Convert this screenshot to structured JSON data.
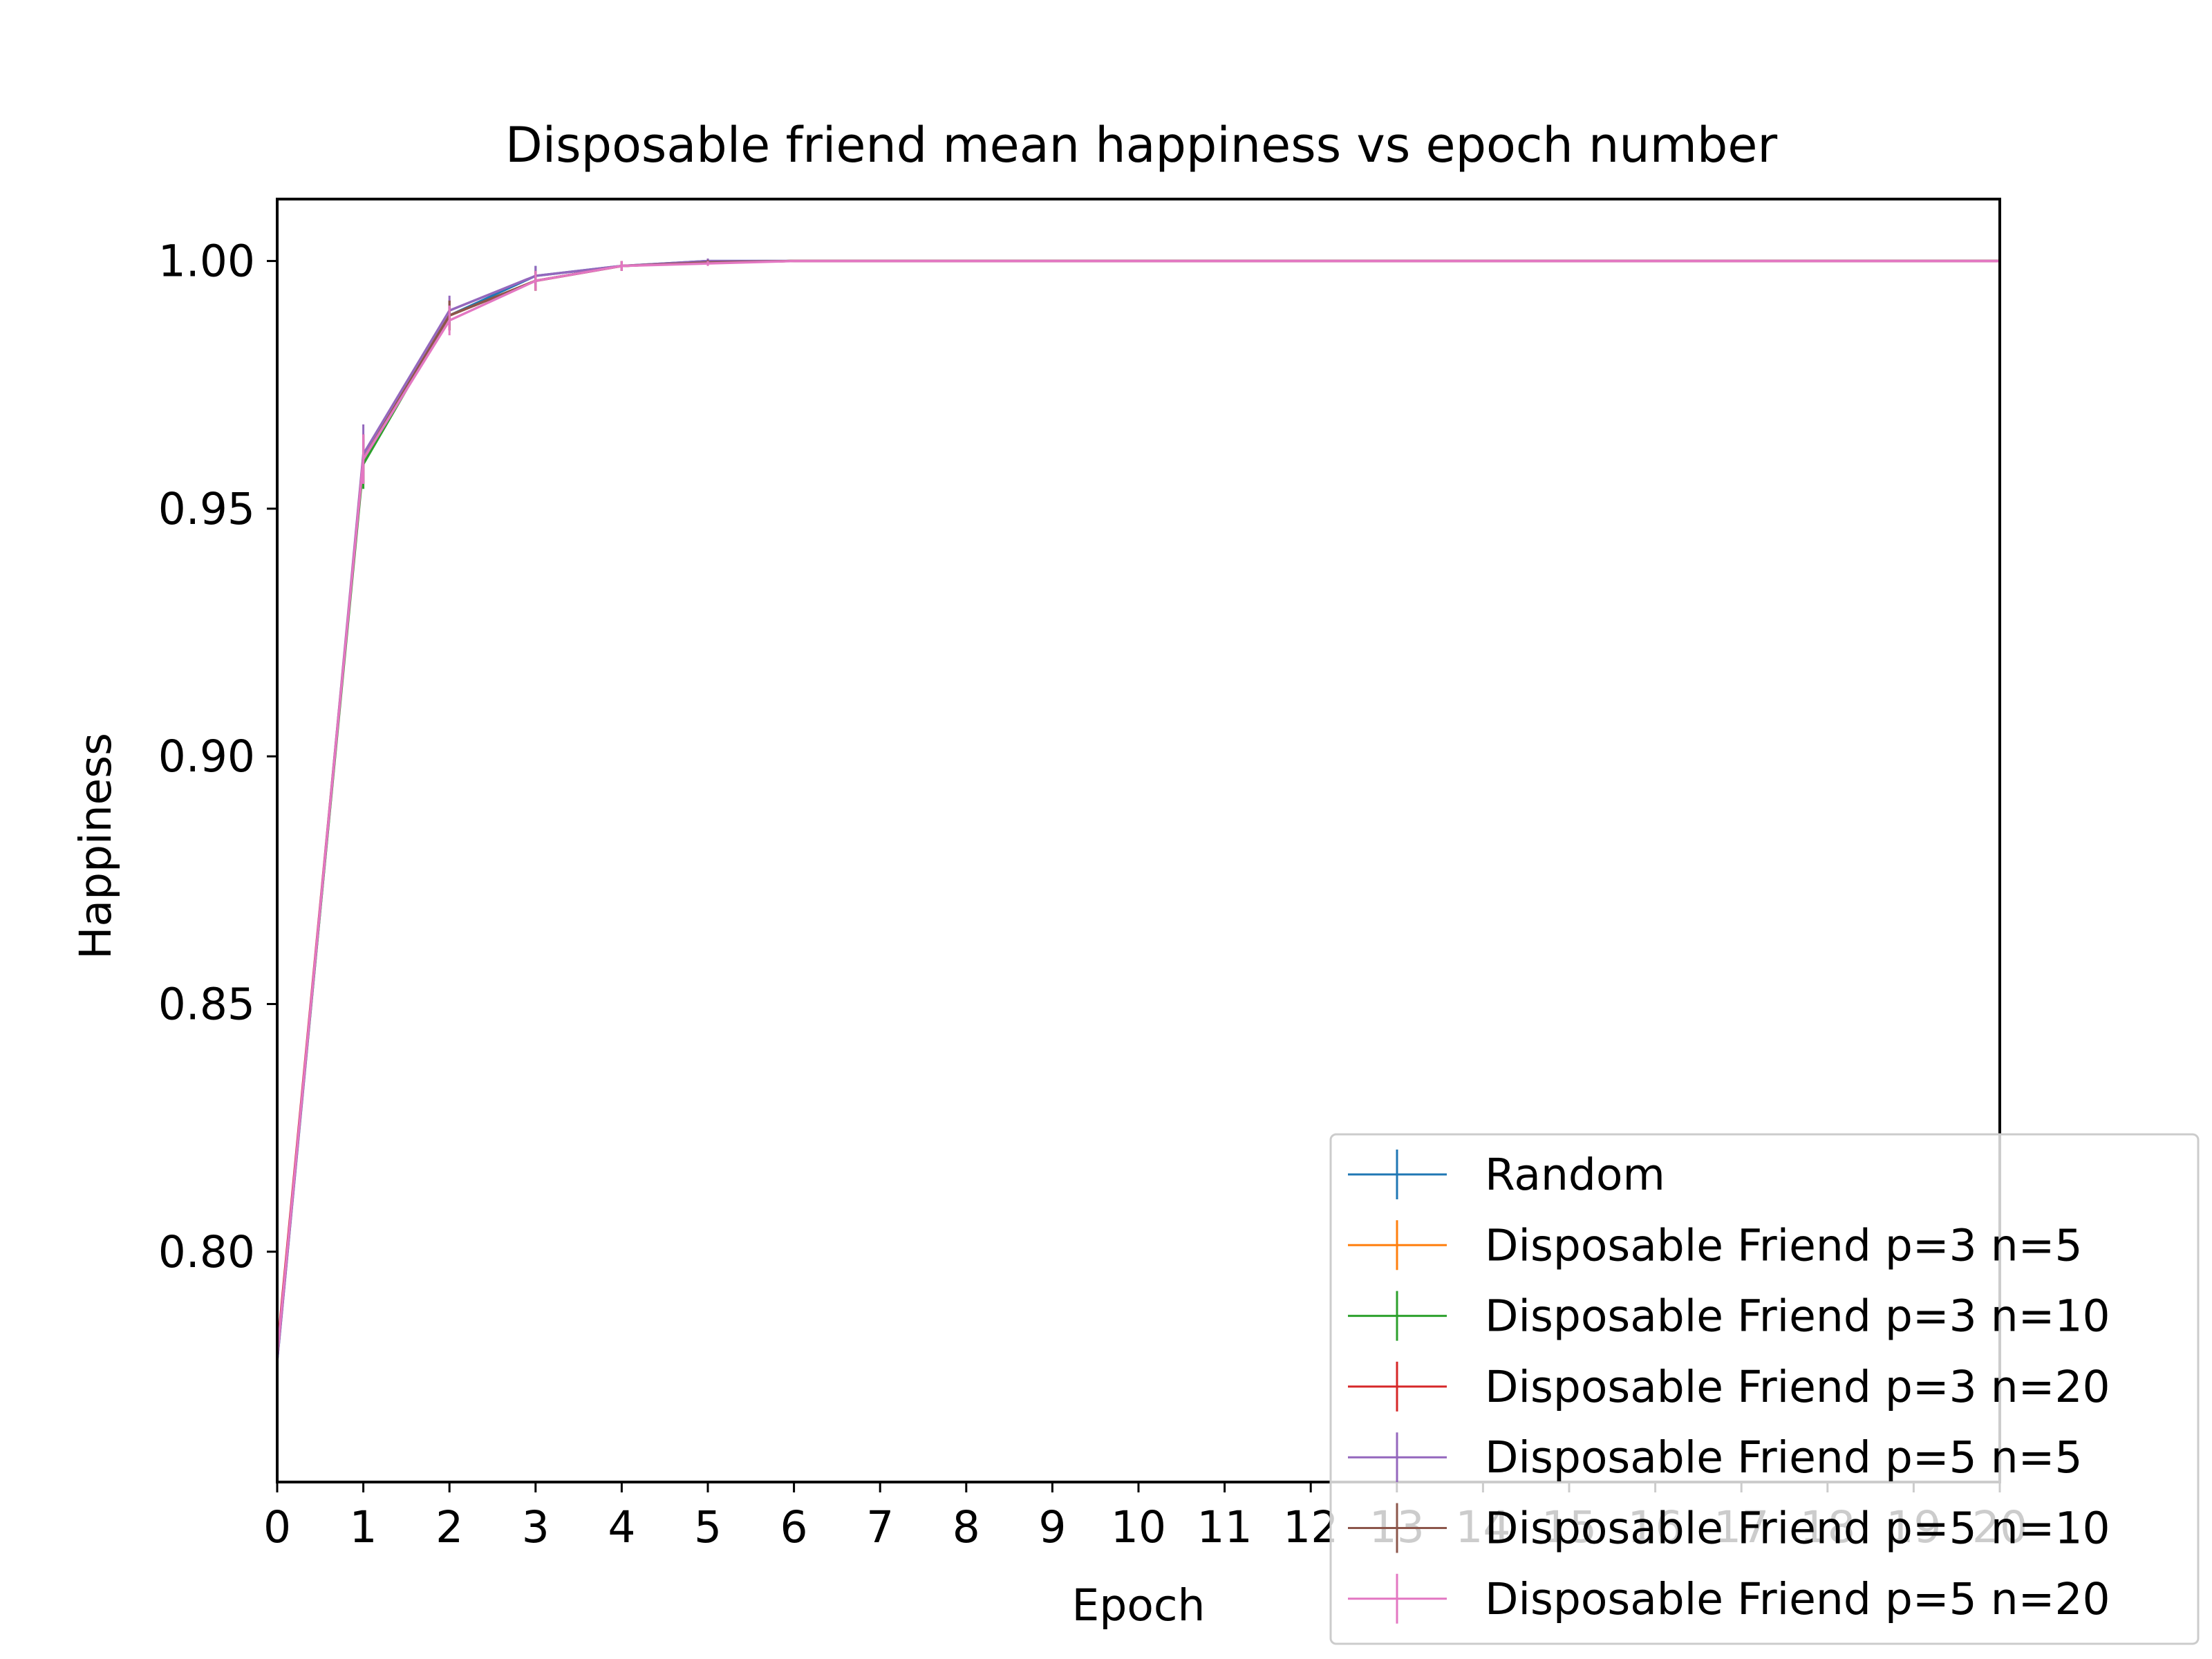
{
  "chart_data": {
    "type": "line",
    "title": "Disposable friend mean happiness vs epoch number",
    "xlabel": "Epoch",
    "ylabel": "Happiness",
    "xlim": [
      0,
      20
    ],
    "ylim": [
      0.7535,
      1.0125
    ],
    "x_ticks": [
      "0",
      "1",
      "2",
      "3",
      "4",
      "5",
      "6",
      "7",
      "8",
      "9",
      "10",
      "11",
      "12",
      "13",
      "14",
      "15",
      "16",
      "17",
      "18",
      "19",
      "20"
    ],
    "y_ticks": [
      0.8,
      0.85,
      0.9,
      0.95,
      1.0
    ],
    "y_tick_labels": [
      "0.80",
      "0.85",
      "0.90",
      "0.95",
      "1.00"
    ],
    "grid": false,
    "legend_position": "lower-right",
    "x": [
      0,
      1,
      2,
      3,
      4,
      5,
      6,
      7,
      8,
      9,
      10,
      11,
      12,
      13,
      14,
      15,
      16,
      17,
      18,
      19,
      20
    ],
    "series": [
      {
        "name": "Random",
        "color": "#1f77b4",
        "values": [
          0.778,
          0.96,
          0.989,
          0.997,
          0.999,
          1.0,
          1.0,
          1.0,
          1.0,
          1.0,
          1.0,
          1.0,
          1.0,
          1.0,
          1.0,
          1.0,
          1.0,
          1.0,
          1.0,
          1.0,
          1.0
        ],
        "errors": [
          0,
          0.005,
          0.003,
          0.002,
          0.001,
          0.0005,
          0.0002,
          0,
          0,
          0,
          0,
          0,
          0,
          0,
          0,
          0,
          0,
          0,
          0,
          0,
          0
        ]
      },
      {
        "name": "Disposable Friend p=3 n=5",
        "color": "#ff7f0e",
        "values": [
          0.779,
          0.96,
          0.989,
          0.996,
          0.999,
          0.9997,
          1.0,
          1.0,
          1.0,
          1.0,
          1.0,
          1.0,
          1.0,
          1.0,
          1.0,
          1.0,
          1.0,
          1.0,
          1.0,
          1.0,
          1.0
        ],
        "errors": [
          0,
          0.005,
          0.003,
          0.002,
          0.001,
          0.0005,
          0.0002,
          0,
          0,
          0,
          0,
          0,
          0,
          0,
          0,
          0,
          0,
          0,
          0,
          0,
          0
        ]
      },
      {
        "name": "Disposable Friend p=3 n=10",
        "color": "#2ca02c",
        "values": [
          0.779,
          0.959,
          0.989,
          0.996,
          0.999,
          0.9997,
          1.0,
          1.0,
          1.0,
          1.0,
          1.0,
          1.0,
          1.0,
          1.0,
          1.0,
          1.0,
          1.0,
          1.0,
          1.0,
          1.0,
          1.0
        ],
        "errors": [
          0,
          0.005,
          0.003,
          0.002,
          0.001,
          0.0005,
          0.0002,
          0,
          0,
          0,
          0,
          0,
          0,
          0,
          0,
          0,
          0,
          0,
          0,
          0,
          0
        ]
      },
      {
        "name": "Disposable Friend p=3 n=20",
        "color": "#d62728",
        "values": [
          0.78,
          0.96,
          0.989,
          0.996,
          0.999,
          0.9997,
          1.0,
          1.0,
          1.0,
          1.0,
          1.0,
          1.0,
          1.0,
          1.0,
          1.0,
          1.0,
          1.0,
          1.0,
          1.0,
          1.0,
          1.0
        ],
        "errors": [
          0,
          0.005,
          0.003,
          0.002,
          0.001,
          0.0005,
          0.0002,
          0,
          0,
          0,
          0,
          0,
          0,
          0,
          0,
          0,
          0,
          0,
          0,
          0,
          0
        ]
      },
      {
        "name": "Disposable Friend p=5 n=5",
        "color": "#9467bd",
        "values": [
          0.778,
          0.961,
          0.99,
          0.997,
          0.999,
          1.0,
          1.0,
          1.0,
          1.0,
          1.0,
          1.0,
          1.0,
          1.0,
          1.0,
          1.0,
          1.0,
          1.0,
          1.0,
          1.0,
          1.0,
          1.0
        ],
        "errors": [
          0,
          0.006,
          0.003,
          0.002,
          0.001,
          0.0005,
          0.0002,
          0,
          0,
          0,
          0,
          0,
          0,
          0,
          0,
          0,
          0,
          0,
          0,
          0,
          0
        ]
      },
      {
        "name": "Disposable Friend p=5 n=10",
        "color": "#8c564b",
        "values": [
          0.779,
          0.96,
          0.989,
          0.996,
          0.999,
          0.9997,
          1.0,
          1.0,
          1.0,
          1.0,
          1.0,
          1.0,
          1.0,
          1.0,
          1.0,
          1.0,
          1.0,
          1.0,
          1.0,
          1.0,
          1.0
        ],
        "errors": [
          0,
          0.005,
          0.003,
          0.002,
          0.001,
          0.0005,
          0.0002,
          0,
          0,
          0,
          0,
          0,
          0,
          0,
          0,
          0,
          0,
          0,
          0,
          0,
          0
        ]
      },
      {
        "name": "Disposable Friend p=5 n=20",
        "color": "#e377c2",
        "values": [
          0.779,
          0.96,
          0.988,
          0.996,
          0.999,
          0.9995,
          1.0,
          1.0,
          1.0,
          1.0,
          1.0,
          1.0,
          1.0,
          1.0,
          1.0,
          1.0,
          1.0,
          1.0,
          1.0,
          1.0,
          1.0
        ],
        "errors": [
          0,
          0.005,
          0.003,
          0.002,
          0.001,
          0.0005,
          0.0002,
          0,
          0,
          0,
          0,
          0,
          0,
          0,
          0,
          0,
          0,
          0,
          0,
          0,
          0
        ]
      }
    ]
  }
}
